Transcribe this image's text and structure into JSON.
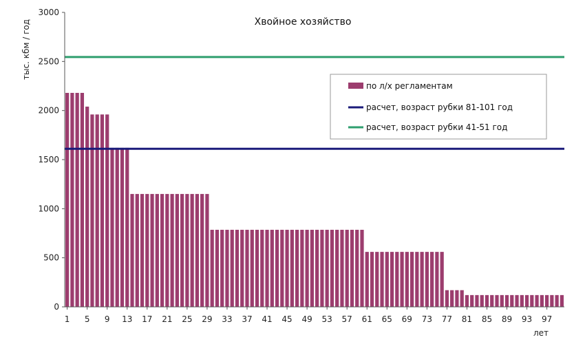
{
  "chart_data": {
    "type": "bar",
    "title": "Хвойное хозяйство",
    "xlabel": "лет",
    "ylabel": "тыс. кбм / год",
    "ylim": [
      0,
      3000
    ],
    "yticks": [
      0,
      500,
      1000,
      1500,
      2000,
      2500,
      3000
    ],
    "xticks": [
      1,
      5,
      9,
      13,
      17,
      21,
      25,
      29,
      33,
      37,
      41,
      45,
      49,
      53,
      57,
      61,
      65,
      69,
      73,
      77,
      81,
      85,
      89,
      93,
      97
    ],
    "x": [
      1,
      2,
      3,
      4,
      5,
      6,
      7,
      8,
      9,
      10,
      11,
      12,
      13,
      14,
      15,
      16,
      17,
      18,
      19,
      20,
      21,
      22,
      23,
      24,
      25,
      26,
      27,
      28,
      29,
      30,
      31,
      32,
      33,
      34,
      35,
      36,
      37,
      38,
      39,
      40,
      41,
      42,
      43,
      44,
      45,
      46,
      47,
      48,
      49,
      50,
      51,
      52,
      53,
      54,
      55,
      56,
      57,
      58,
      59,
      60,
      61,
      62,
      63,
      64,
      65,
      66,
      67,
      68,
      69,
      70,
      71,
      72,
      73,
      74,
      75,
      76,
      77,
      78,
      79,
      80,
      81,
      82,
      83,
      84,
      85,
      86,
      87,
      88,
      89,
      90,
      91,
      92,
      93,
      94,
      95,
      96,
      97,
      98,
      99,
      100
    ],
    "series": [
      {
        "name": "по л/х регламентам",
        "color": "#9c3d6e",
        "values": [
          2180,
          2180,
          2180,
          2180,
          2040,
          1960,
          1960,
          1960,
          1960,
          1620,
          1620,
          1620,
          1620,
          1150,
          1150,
          1150,
          1150,
          1150,
          1150,
          1150,
          1150,
          1150,
          1150,
          1150,
          1150,
          1150,
          1150,
          1150,
          1150,
          785,
          785,
          785,
          785,
          785,
          785,
          785,
          785,
          785,
          785,
          785,
          785,
          785,
          785,
          785,
          785,
          785,
          785,
          785,
          785,
          785,
          785,
          785,
          785,
          785,
          785,
          785,
          785,
          785,
          785,
          785,
          560,
          560,
          560,
          560,
          560,
          560,
          560,
          560,
          560,
          560,
          560,
          560,
          560,
          560,
          560,
          560,
          170,
          170,
          170,
          170,
          120,
          120,
          120,
          120,
          120,
          120,
          120,
          120,
          120,
          120,
          120,
          120,
          120,
          120,
          120,
          120,
          120,
          120,
          120,
          120
        ]
      }
    ],
    "lines": [
      {
        "name": "расчет, возраст рубки 81-101 год",
        "value": 1610,
        "color": "#1a1a7a"
      },
      {
        "name": "расчет, возраст рубки 41-51 год",
        "value": 2545,
        "color": "#2e9e6e"
      }
    ],
    "legend_placement": "top-right",
    "grid": false
  }
}
